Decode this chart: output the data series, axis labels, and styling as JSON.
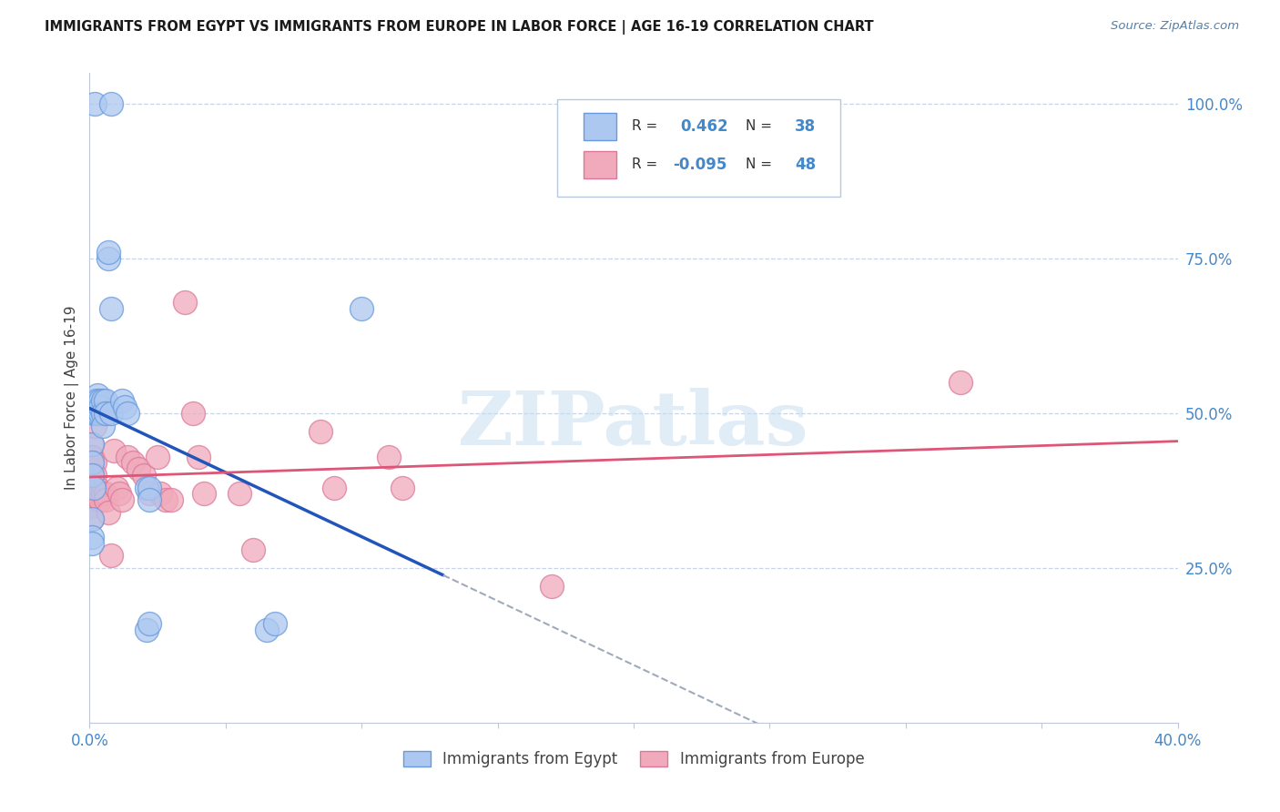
{
  "title": "IMMIGRANTS FROM EGYPT VS IMMIGRANTS FROM EUROPE IN LABOR FORCE | AGE 16-19 CORRELATION CHART",
  "source": "Source: ZipAtlas.com",
  "ylabel_label": "In Labor Force | Age 16-19",
  "legend_labels": [
    "Immigrants from Egypt",
    "Immigrants from Europe"
  ],
  "r_egypt": "0.462",
  "n_egypt": "38",
  "r_europe": "-0.095",
  "n_europe": "48",
  "x_min": 0.0,
  "x_max": 0.4,
  "y_min": 0.0,
  "y_max": 1.05,
  "color_egypt": "#adc8f0",
  "color_europe": "#f0aabb",
  "color_egypt_line": "#2255bb",
  "color_europe_line": "#dd5577",
  "color_egypt_edge": "#6699dd",
  "color_europe_edge": "#dd7799",
  "grid_color": "#c8d4e8",
  "ytick_color": "#4488cc",
  "xtick_color": "#4488cc",
  "watermark": "ZIPatlas",
  "egypt_x": [
    0.002,
    0.008,
    0.001,
    0.001,
    0.001,
    0.0015,
    0.002,
    0.002,
    0.002,
    0.003,
    0.003,
    0.003,
    0.004,
    0.004,
    0.004,
    0.005,
    0.005,
    0.005,
    0.006,
    0.006,
    0.007,
    0.007,
    0.008,
    0.008,
    0.012,
    0.013,
    0.014,
    0.021,
    0.022,
    0.022,
    0.021,
    0.022,
    0.065,
    0.068,
    0.1,
    0.001,
    0.001,
    0.001
  ],
  "egypt_y": [
    1.0,
    1.0,
    0.45,
    0.42,
    0.4,
    0.38,
    0.5,
    0.52,
    0.5,
    0.53,
    0.52,
    0.5,
    0.52,
    0.5,
    0.51,
    0.52,
    0.5,
    0.48,
    0.52,
    0.5,
    0.75,
    0.76,
    0.67,
    0.5,
    0.52,
    0.51,
    0.5,
    0.38,
    0.38,
    0.36,
    0.15,
    0.16,
    0.15,
    0.16,
    0.67,
    0.33,
    0.3,
    0.29
  ],
  "europe_x": [
    0.001,
    0.001,
    0.001,
    0.001,
    0.001,
    0.001,
    0.001,
    0.001,
    0.002,
    0.002,
    0.002,
    0.002,
    0.003,
    0.003,
    0.003,
    0.004,
    0.004,
    0.005,
    0.005,
    0.006,
    0.006,
    0.007,
    0.008,
    0.009,
    0.01,
    0.011,
    0.012,
    0.014,
    0.016,
    0.018,
    0.02,
    0.022,
    0.025,
    0.026,
    0.028,
    0.03,
    0.035,
    0.038,
    0.04,
    0.042,
    0.055,
    0.06,
    0.085,
    0.09,
    0.11,
    0.115,
    0.17,
    0.32
  ],
  "europe_y": [
    0.45,
    0.43,
    0.42,
    0.4,
    0.38,
    0.36,
    0.35,
    0.33,
    0.5,
    0.48,
    0.42,
    0.4,
    0.5,
    0.38,
    0.37,
    0.37,
    0.36,
    0.5,
    0.37,
    0.37,
    0.36,
    0.34,
    0.27,
    0.44,
    0.38,
    0.37,
    0.36,
    0.43,
    0.42,
    0.41,
    0.4,
    0.37,
    0.43,
    0.37,
    0.36,
    0.36,
    0.68,
    0.5,
    0.43,
    0.37,
    0.37,
    0.28,
    0.47,
    0.38,
    0.43,
    0.38,
    0.22,
    0.55
  ]
}
